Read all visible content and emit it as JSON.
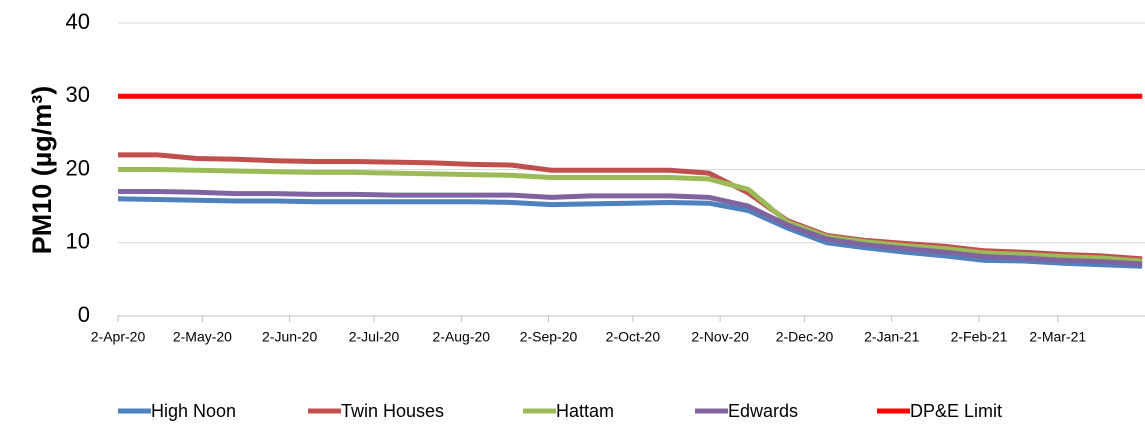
{
  "chart_data": {
    "type": "line",
    "y_label": "PM10 (µg/m³)",
    "x": [
      "2020-04-02",
      "2020-04-16",
      "2020-04-30",
      "2020-05-14",
      "2020-05-28",
      "2020-06-11",
      "2020-06-25",
      "2020-07-09",
      "2020-07-23",
      "2020-08-06",
      "2020-08-20",
      "2020-09-03",
      "2020-09-17",
      "2020-10-01",
      "2020-10-15",
      "2020-10-29",
      "2020-11-12",
      "2020-11-26",
      "2020-12-10",
      "2020-12-24",
      "2021-01-07",
      "2021-01-21",
      "2021-02-04",
      "2021-02-18",
      "2021-03-04",
      "2021-03-18",
      "2021-04-01"
    ],
    "series": [
      {
        "name": "High Noon",
        "color": "#4f81bd",
        "values": [
          16,
          15.9,
          15.8,
          15.7,
          15.7,
          15.6,
          15.6,
          15.6,
          15.6,
          15.6,
          15.5,
          15.2,
          15.3,
          15.4,
          15.5,
          15.4,
          14.4,
          12,
          10,
          9.3,
          8.7,
          8.2,
          7.6,
          7.5,
          7.2,
          7,
          6.8
        ]
      },
      {
        "name": "Twin Houses",
        "color": "#c0504d",
        "values": [
          22,
          22,
          21.5,
          21.4,
          21.2,
          21.1,
          21.1,
          21,
          20.9,
          20.7,
          20.6,
          19.9,
          19.9,
          19.9,
          19.9,
          19.5,
          16.8,
          13,
          11,
          10.3,
          9.9,
          9.5,
          8.9,
          8.7,
          8.4,
          8.2,
          7.8
        ]
      },
      {
        "name": "Hattam",
        "color": "#9bbb59",
        "values": [
          20,
          20,
          19.9,
          19.8,
          19.7,
          19.6,
          19.6,
          19.5,
          19.4,
          19.3,
          19.2,
          18.9,
          18.9,
          18.9,
          18.9,
          18.7,
          17.3,
          12.8,
          10.8,
          10.1,
          9.6,
          9.2,
          8.6,
          8.4,
          8.1,
          7.9,
          7.5
        ]
      },
      {
        "name": "Edwards",
        "color": "#8064a2",
        "values": [
          17,
          17,
          16.9,
          16.7,
          16.7,
          16.6,
          16.6,
          16.5,
          16.5,
          16.5,
          16.5,
          16.2,
          16.4,
          16.4,
          16.4,
          16.2,
          15,
          12.4,
          10.5,
          9.7,
          9.2,
          8.7,
          8.1,
          7.9,
          7.6,
          7.4,
          7.1
        ]
      },
      {
        "name": "DP&E Limit",
        "color": "#ff0000",
        "values": [
          30,
          30,
          30,
          30,
          30,
          30,
          30,
          30,
          30,
          30,
          30,
          30,
          30,
          30,
          30,
          30,
          30,
          30,
          30,
          30,
          30,
          30,
          30,
          30,
          30,
          30,
          30
        ]
      }
    ],
    "xlim": [
      "2020-04-02",
      "2021-04-02"
    ],
    "xticks": [
      {
        "value": "2020-04-02",
        "label": "2-Apr-20"
      },
      {
        "value": "2020-05-02",
        "label": "2-May-20"
      },
      {
        "value": "2020-06-02",
        "label": "2-Jun-20"
      },
      {
        "value": "2020-07-02",
        "label": "2-Jul-20"
      },
      {
        "value": "2020-08-02",
        "label": "2-Aug-20"
      },
      {
        "value": "2020-09-02",
        "label": "2-Sep-20"
      },
      {
        "value": "2020-10-02",
        "label": "2-Oct-20"
      },
      {
        "value": "2020-11-02",
        "label": "2-Nov-20"
      },
      {
        "value": "2020-12-02",
        "label": "2-Dec-20"
      },
      {
        "value": "2021-01-02",
        "label": "2-Jan-21"
      },
      {
        "value": "2021-02-02",
        "label": "2-Feb-21"
      },
      {
        "value": "2021-03-02",
        "label": "2-Mar-21"
      }
    ],
    "ylim": [
      0,
      40
    ],
    "yticks": [
      0,
      10,
      20,
      30,
      40
    ],
    "grid": true,
    "legend": "bottom"
  }
}
